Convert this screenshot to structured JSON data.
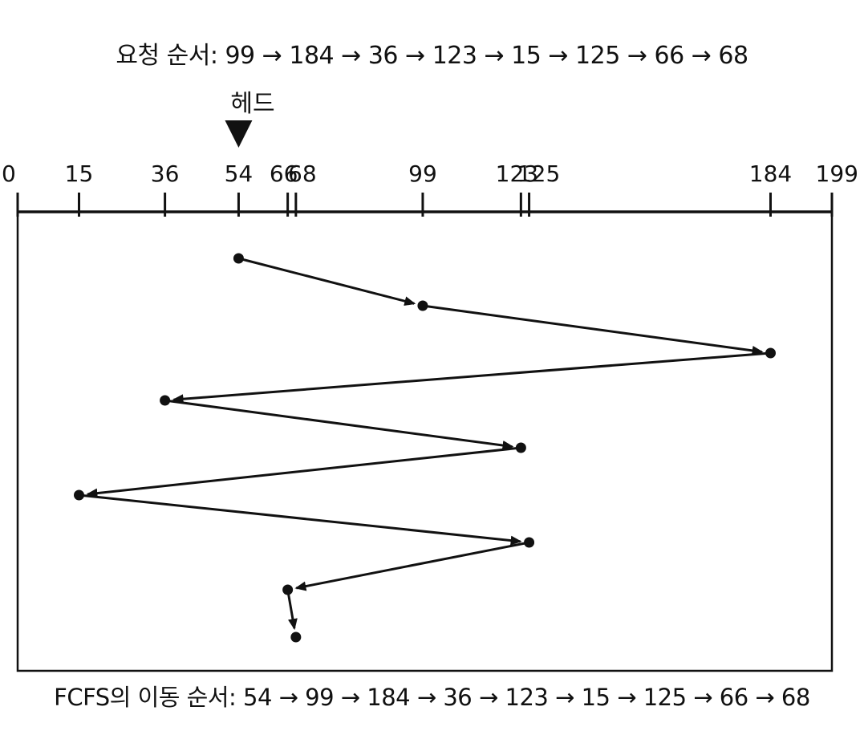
{
  "request_order_text": "요청 순서: 99 → 184 → 36 → 123 → 15 → 125 → 66 → 68",
  "head_label": "헤드",
  "head_position": 54,
  "axis": {
    "min": 0,
    "max": 199,
    "ticks": [
      {
        "value": 0,
        "label": "0"
      },
      {
        "value": 15,
        "label": "15"
      },
      {
        "value": 36,
        "label": "36"
      },
      {
        "value": 54,
        "label": "54"
      },
      {
        "value": 66,
        "label": "66"
      },
      {
        "value": 68,
        "label": "68"
      },
      {
        "value": 99,
        "label": "99"
      },
      {
        "value": 123,
        "label": "123"
      },
      {
        "value": 125,
        "label": "125"
      },
      {
        "value": 184,
        "label": "184"
      },
      {
        "value": 199,
        "label": "199"
      }
    ]
  },
  "movement_sequence": [
    54,
    99,
    184,
    36,
    123,
    15,
    125,
    66,
    68
  ],
  "movement_order_text": "FCFS의 이동 순서: 54 → 99 → 184 → 36 → 123 → 15 → 125 → 66 → 68",
  "colors": {
    "ink": "#111111",
    "background": "#ffffff"
  }
}
